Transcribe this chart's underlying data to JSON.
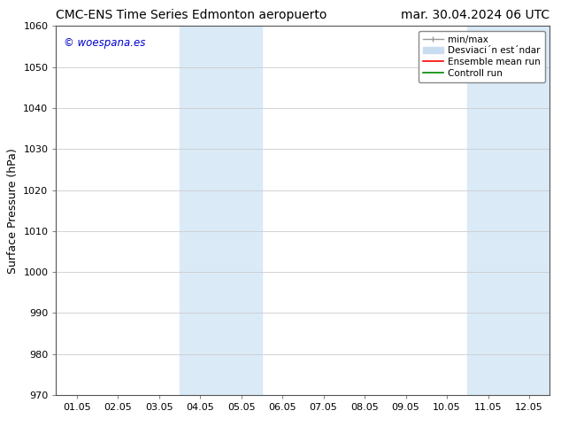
{
  "title_left": "CMC-ENS Time Series Edmonton aeropuerto",
  "title_right": "mar. 30.04.2024 06 UTC",
  "ylabel": "Surface Pressure (hPa)",
  "ylim": [
    970,
    1060
  ],
  "yticks": [
    970,
    980,
    990,
    1000,
    1010,
    1020,
    1030,
    1040,
    1050,
    1060
  ],
  "xtick_labels": [
    "01.05",
    "02.05",
    "03.05",
    "04.05",
    "05.05",
    "06.05",
    "07.05",
    "08.05",
    "09.05",
    "10.05",
    "11.05",
    "12.05"
  ],
  "watermark": "© woespana.es",
  "watermark_color": "#0000cc",
  "shaded_regions": [
    {
      "xstart": 3,
      "xend": 5,
      "color": "#daeaf7"
    },
    {
      "xstart": 10,
      "xend": 12,
      "color": "#daeaf7"
    }
  ],
  "legend_labels": [
    "min/max",
    "Desviaci´n est´ndar",
    "Ensemble mean run",
    "Controll run"
  ],
  "legend_colors": [
    "#999999",
    "#c8ddf0",
    "#ff0000",
    "#00aa00"
  ],
  "background_color": "#ffffff",
  "grid_color": "#cccccc",
  "title_fontsize": 10,
  "ylabel_fontsize": 9,
  "tick_fontsize": 8,
  "legend_fontsize": 7.5,
  "watermark_fontsize": 8.5
}
